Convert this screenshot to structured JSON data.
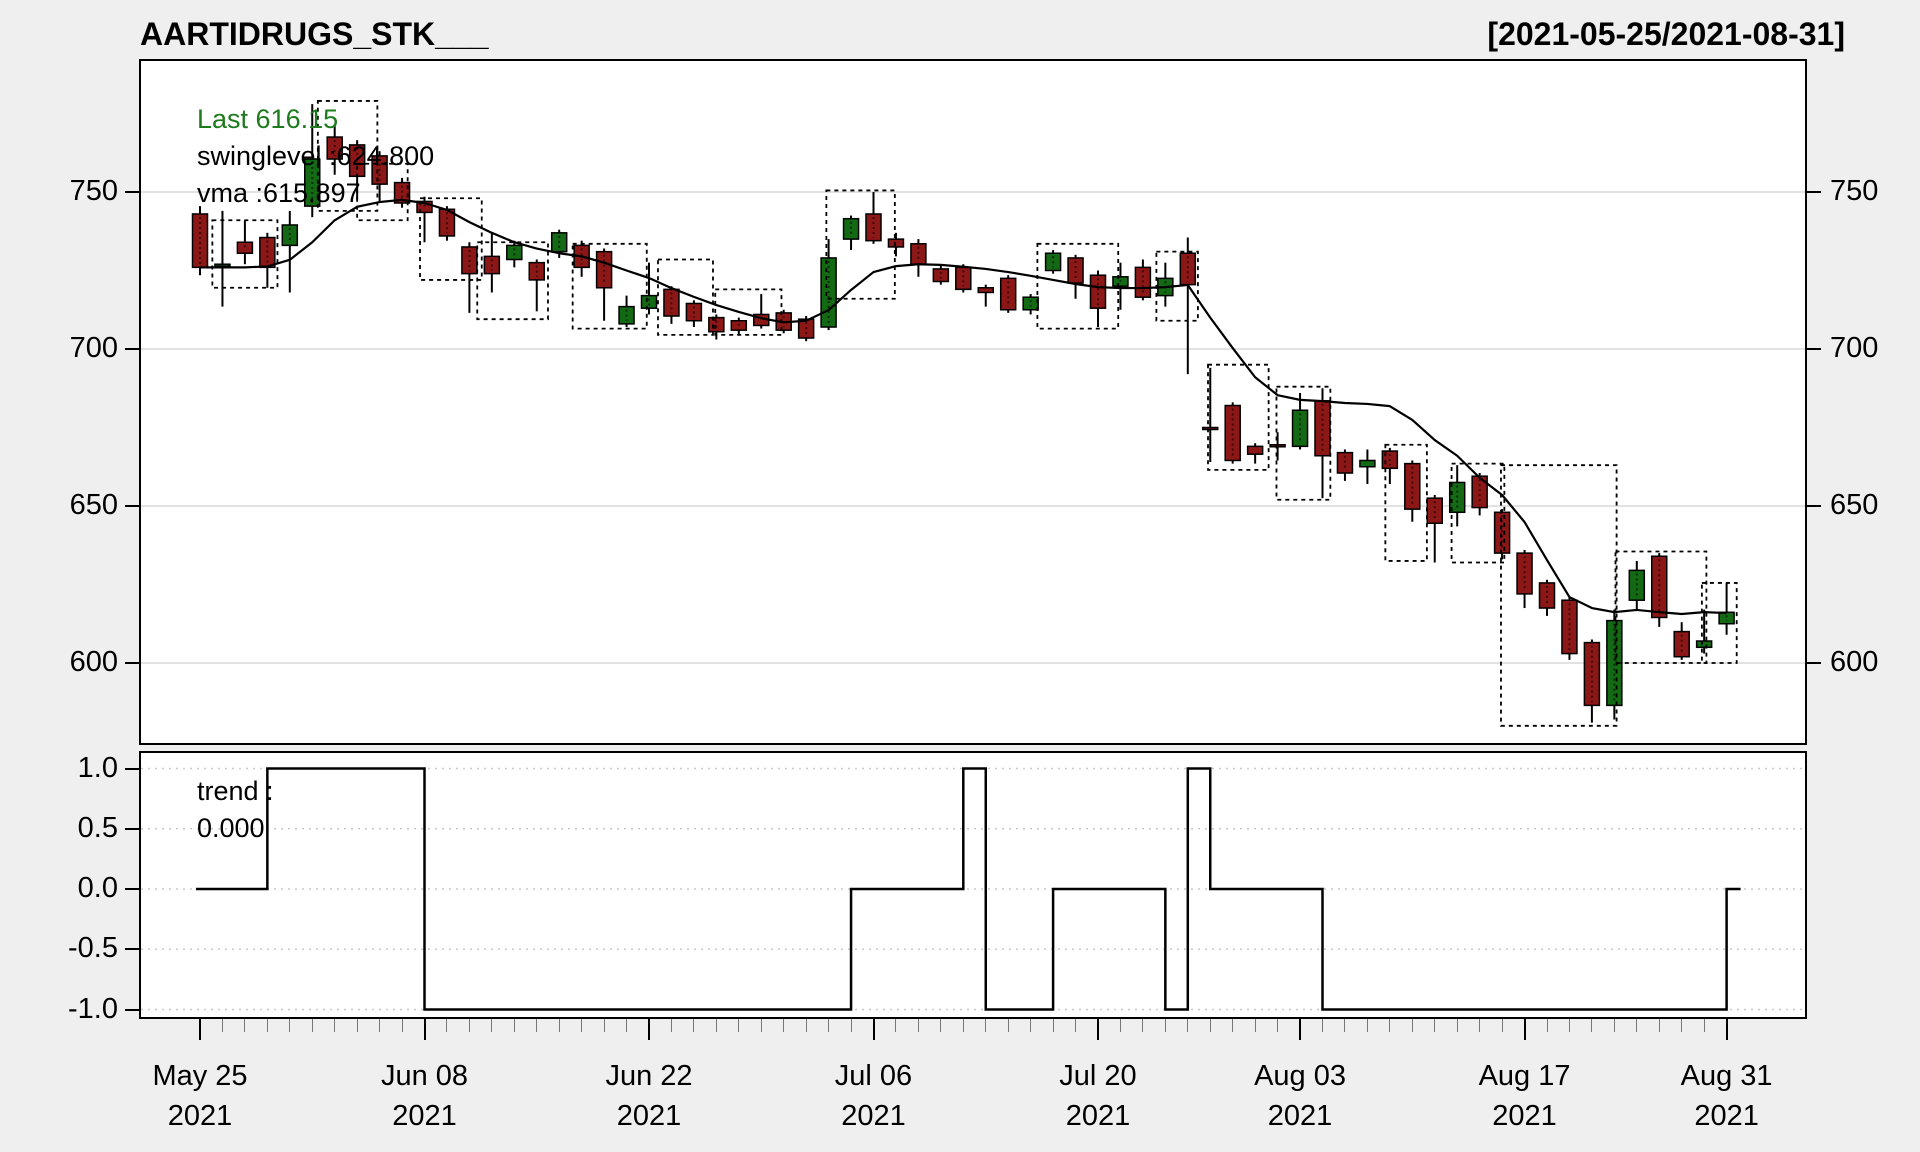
{
  "header": {
    "title": "AARTIDRUGS_STK___",
    "date_range": "[2021-05-25/2021-08-31]"
  },
  "legend": {
    "last_label": "Last 616.15",
    "swinglevel_label": "swinglevel :624.800",
    "vma_label": "vma :615.897",
    "last_color": "#1d7a1d"
  },
  "trend_panel": {
    "label_line1": "trend :",
    "label_line2": "0.000"
  },
  "colors": {
    "up": "#146914",
    "down": "#8c1717",
    "line": "#000000",
    "grid_main": "#d9d9d9",
    "grid_trend": "#c9c9c9",
    "background": "#efefef",
    "panel": "#ffffff"
  },
  "chart_data": {
    "type": "candlestick+step",
    "title": "AARTIDRUGS_STK___",
    "subtitle_range": "[2021-05-25/2021-08-31]",
    "last_price": 616.15,
    "swinglevel": 624.8,
    "vma_value": 615.897,
    "trend_value": 0.0,
    "price_axis": {
      "ticks": [
        750,
        700,
        650,
        600
      ],
      "labels": [
        "750",
        "700",
        "650",
        "600"
      ],
      "range": [
        574,
        792
      ],
      "grid": true
    },
    "trend_axis": {
      "ticks": [
        1.0,
        0.5,
        0.0,
        -0.5,
        -1.0
      ],
      "labels": [
        "1.0",
        "0.5",
        "0.0",
        "-0.5",
        "-1.0"
      ],
      "range": [
        -1.15,
        1.15
      ],
      "grid": true
    },
    "x_tick_labels": [
      {
        "i": 0,
        "line1": "May 25",
        "line2": "2021"
      },
      {
        "i": 10,
        "line1": "Jun 08",
        "line2": "2021"
      },
      {
        "i": 20,
        "line1": "Jun 22",
        "line2": "2021"
      },
      {
        "i": 30,
        "line1": "Jul 06",
        "line2": "2021"
      },
      {
        "i": 40,
        "line1": "Jul 20",
        "line2": "2021"
      },
      {
        "i": 49,
        "line1": "Aug 03",
        "line2": "2021"
      },
      {
        "i": 59,
        "line1": "Aug 17",
        "line2": "2021"
      },
      {
        "i": 68,
        "line1": "Aug 31",
        "line2": "2021"
      }
    ],
    "dates": [
      "05-25",
      "05-26",
      "05-27",
      "05-28",
      "05-31",
      "06-01",
      "06-02",
      "06-03",
      "06-04",
      "06-07",
      "06-08",
      "06-09",
      "06-10",
      "06-11",
      "06-14",
      "06-15",
      "06-16",
      "06-17",
      "06-18",
      "06-21",
      "06-22",
      "06-23",
      "06-24",
      "06-25",
      "06-28",
      "06-29",
      "06-30",
      "07-01",
      "07-02",
      "07-05",
      "07-06",
      "07-07",
      "07-08",
      "07-09",
      "07-12",
      "07-13",
      "07-14",
      "07-15",
      "07-16",
      "07-19",
      "07-20",
      "07-22",
      "07-23",
      "07-26",
      "07-27",
      "07-28",
      "07-29",
      "07-30",
      "08-02",
      "08-03",
      "08-04",
      "08-05",
      "08-06",
      "08-09",
      "08-10",
      "08-11",
      "08-12",
      "08-13",
      "08-16",
      "08-17",
      "08-18",
      "08-20",
      "08-23",
      "08-24",
      "08-25",
      "08-26",
      "08-27",
      "08-30",
      "08-31"
    ],
    "ohlc": [
      [
        743.0,
        745.5,
        723.5,
        726.0
      ],
      [
        726.5,
        744.0,
        713.5,
        727.0
      ],
      [
        734.0,
        741.0,
        727.0,
        730.5
      ],
      [
        735.5,
        737.0,
        719.5,
        726.0
      ],
      [
        733.0,
        744.0,
        718.0,
        739.5
      ],
      [
        745.5,
        778.0,
        742.0,
        760.5
      ],
      [
        767.5,
        771.5,
        755.5,
        760.5
      ],
      [
        765.0,
        766.5,
        747.5,
        755.0
      ],
      [
        761.5,
        763.0,
        746.5,
        752.5
      ],
      [
        753.0,
        754.5,
        745.0,
        746.5
      ],
      [
        747.0,
        748.5,
        734.0,
        743.5
      ],
      [
        744.5,
        745.5,
        734.5,
        736.0
      ],
      [
        732.5,
        734.0,
        711.5,
        724.0
      ],
      [
        729.5,
        737.0,
        718.0,
        724.0
      ],
      [
        728.5,
        734.5,
        726.0,
        733.0
      ],
      [
        727.5,
        728.5,
        712.0,
        722.0
      ],
      [
        731.0,
        738.0,
        729.0,
        737.0
      ],
      [
        733.0,
        734.5,
        723.0,
        726.0
      ],
      [
        731.0,
        732.0,
        709.0,
        719.5
      ],
      [
        708.0,
        717.0,
        707.0,
        713.5
      ],
      [
        713.0,
        727.5,
        711.0,
        717.0
      ],
      [
        719.0,
        720.0,
        708.0,
        710.5
      ],
      [
        714.5,
        715.5,
        707.0,
        709.0
      ],
      [
        710.0,
        711.0,
        703.0,
        705.5
      ],
      [
        709.0,
        710.0,
        704.5,
        706.0
      ],
      [
        711.0,
        717.5,
        706.5,
        707.5
      ],
      [
        711.5,
        712.5,
        705.0,
        706.0
      ],
      [
        709.5,
        710.5,
        702.5,
        703.5
      ],
      [
        707.0,
        735.0,
        706.0,
        729.0
      ],
      [
        735.0,
        742.5,
        731.5,
        741.5
      ],
      [
        743.0,
        750.0,
        733.5,
        734.5
      ],
      [
        735.0,
        737.0,
        729.5,
        732.5
      ],
      [
        733.5,
        735.0,
        723.0,
        727.0
      ],
      [
        725.5,
        726.5,
        720.5,
        721.5
      ],
      [
        726.0,
        727.0,
        718.0,
        719.0
      ],
      [
        719.5,
        720.5,
        713.5,
        718.0
      ],
      [
        722.5,
        723.5,
        711.5,
        712.5
      ],
      [
        712.5,
        717.5,
        711.0,
        716.5
      ],
      [
        725.0,
        731.5,
        724.0,
        730.5
      ],
      [
        729.0,
        730.0,
        716.0,
        721.0
      ],
      [
        723.5,
        725.0,
        707.0,
        713.0
      ],
      [
        720.0,
        727.5,
        712.5,
        723.0
      ],
      [
        726.0,
        728.5,
        715.5,
        716.5
      ],
      [
        717.0,
        727.5,
        713.5,
        722.5
      ],
      [
        730.5,
        735.5,
        692.0,
        720.5
      ],
      [
        675.0,
        694.0,
        664.0,
        674.5
      ],
      [
        682.0,
        683.0,
        663.5,
        664.5
      ],
      [
        669.0,
        670.0,
        663.5,
        666.5
      ],
      [
        669.5,
        673.5,
        664.5,
        669.0
      ],
      [
        669.0,
        686.0,
        668.0,
        680.5
      ],
      [
        683.5,
        687.5,
        652.5,
        666.0
      ],
      [
        667.0,
        668.0,
        658.0,
        660.5
      ],
      [
        662.5,
        668.0,
        657.0,
        664.5
      ],
      [
        667.5,
        668.5,
        657.0,
        662.0
      ],
      [
        663.5,
        664.5,
        645.0,
        649.0
      ],
      [
        652.5,
        653.5,
        632.0,
        644.5
      ],
      [
        648.0,
        663.0,
        643.5,
        657.5
      ],
      [
        659.5,
        660.5,
        647.0,
        649.5
      ],
      [
        648.0,
        649.0,
        633.0,
        635.0
      ],
      [
        635.0,
        636.0,
        617.5,
        622.0
      ],
      [
        625.5,
        626.5,
        615.0,
        617.5
      ],
      [
        620.0,
        621.0,
        601.0,
        603.0
      ],
      [
        606.5,
        607.5,
        581.0,
        586.5
      ],
      [
        586.5,
        617.0,
        582.0,
        613.5
      ],
      [
        620.0,
        632.5,
        617.0,
        629.5
      ],
      [
        634.0,
        635.0,
        611.5,
        614.5
      ],
      [
        610.0,
        613.0,
        601.0,
        602.0
      ],
      [
        605.0,
        617.0,
        603.0,
        607.0
      ],
      [
        612.5,
        625.5,
        609.0,
        616.15
      ]
    ],
    "vma": [
      726,
      726,
      726,
      726.3,
      728.4,
      734,
      741,
      745.3,
      746.8,
      747.5,
      746.5,
      744.3,
      740.4,
      737,
      734,
      732,
      730.5,
      729.5,
      727.5,
      725,
      722.6,
      719.4,
      716.6,
      714,
      711.8,
      709.8,
      708.5,
      709,
      712.4,
      718.8,
      724.5,
      726.4,
      727,
      726.8,
      726.2,
      725.5,
      724.5,
      723.3,
      722,
      720.7,
      719.7,
      719.4,
      719.4,
      719.7,
      720.4,
      710,
      700.3,
      691,
      685.3,
      683.8,
      683.4,
      682.8,
      682.5,
      681.8,
      677.4,
      671,
      666,
      659,
      653.5,
      644.9,
      632.8,
      621,
      617.5,
      616.2,
      616.9,
      616.2,
      615.6,
      616.2,
      615.9
    ],
    "trend": [
      0,
      0,
      0,
      1,
      1,
      1,
      1,
      1,
      1,
      1,
      -1,
      -1,
      -1,
      -1,
      -1,
      -1,
      -1,
      -1,
      -1,
      -1,
      -1,
      -1,
      -1,
      -1,
      -1,
      -1,
      -1,
      -1,
      -1,
      0,
      0,
      0,
      0,
      0,
      1,
      -1,
      -1,
      -1,
      0,
      0,
      0,
      0,
      0,
      -1,
      1,
      0,
      0,
      0,
      0,
      0,
      -1,
      -1,
      -1,
      -1,
      -1,
      -1,
      -1,
      -1,
      -1,
      -1,
      -1,
      -1,
      -1,
      -1,
      -1,
      -1,
      -1,
      -1,
      0
    ],
    "swing_boxes": [
      {
        "i0": 0.55,
        "i1": 3.45,
        "hi": 741.0,
        "lo": 719.5
      },
      {
        "i0": 5.25,
        "i1": 7.9,
        "hi": 779.0,
        "lo": 744.0
      },
      {
        "i0": 7.0,
        "i1": 9.25,
        "hi": 759.0,
        "lo": 741.0
      },
      {
        "i0": 9.8,
        "i1": 12.55,
        "hi": 748.0,
        "lo": 722.0
      },
      {
        "i0": 12.35,
        "i1": 15.5,
        "hi": 734.0,
        "lo": 709.5
      },
      {
        "i0": 16.6,
        "i1": 19.9,
        "hi": 733.5,
        "lo": 706.5
      },
      {
        "i0": 20.4,
        "i1": 22.85,
        "hi": 728.5,
        "lo": 704.5
      },
      {
        "i0": 22.95,
        "i1": 25.9,
        "hi": 719.0,
        "lo": 704.5
      },
      {
        "i0": 27.9,
        "i1": 30.95,
        "hi": 750.5,
        "lo": 716.0
      },
      {
        "i0": 37.3,
        "i1": 40.9,
        "hi": 733.5,
        "lo": 706.5
      },
      {
        "i0": 42.6,
        "i1": 44.45,
        "hi": 731.0,
        "lo": 709.0
      },
      {
        "i0": 44.9,
        "i1": 47.6,
        "hi": 695.0,
        "lo": 661.5
      },
      {
        "i0": 47.95,
        "i1": 50.35,
        "hi": 688.0,
        "lo": 652.0
      },
      {
        "i0": 52.8,
        "i1": 54.65,
        "hi": 669.5,
        "lo": 632.5
      },
      {
        "i0": 55.75,
        "i1": 58.1,
        "hi": 663.5,
        "lo": 632.0
      },
      {
        "i0": 57.95,
        "i1": 63.1,
        "hi": 663.0,
        "lo": 580.0
      },
      {
        "i0": 63.05,
        "i1": 67.1,
        "hi": 635.5,
        "lo": 600.0
      },
      {
        "i0": 66.9,
        "i1": 68.45,
        "hi": 625.5,
        "lo": 600.0
      }
    ]
  }
}
